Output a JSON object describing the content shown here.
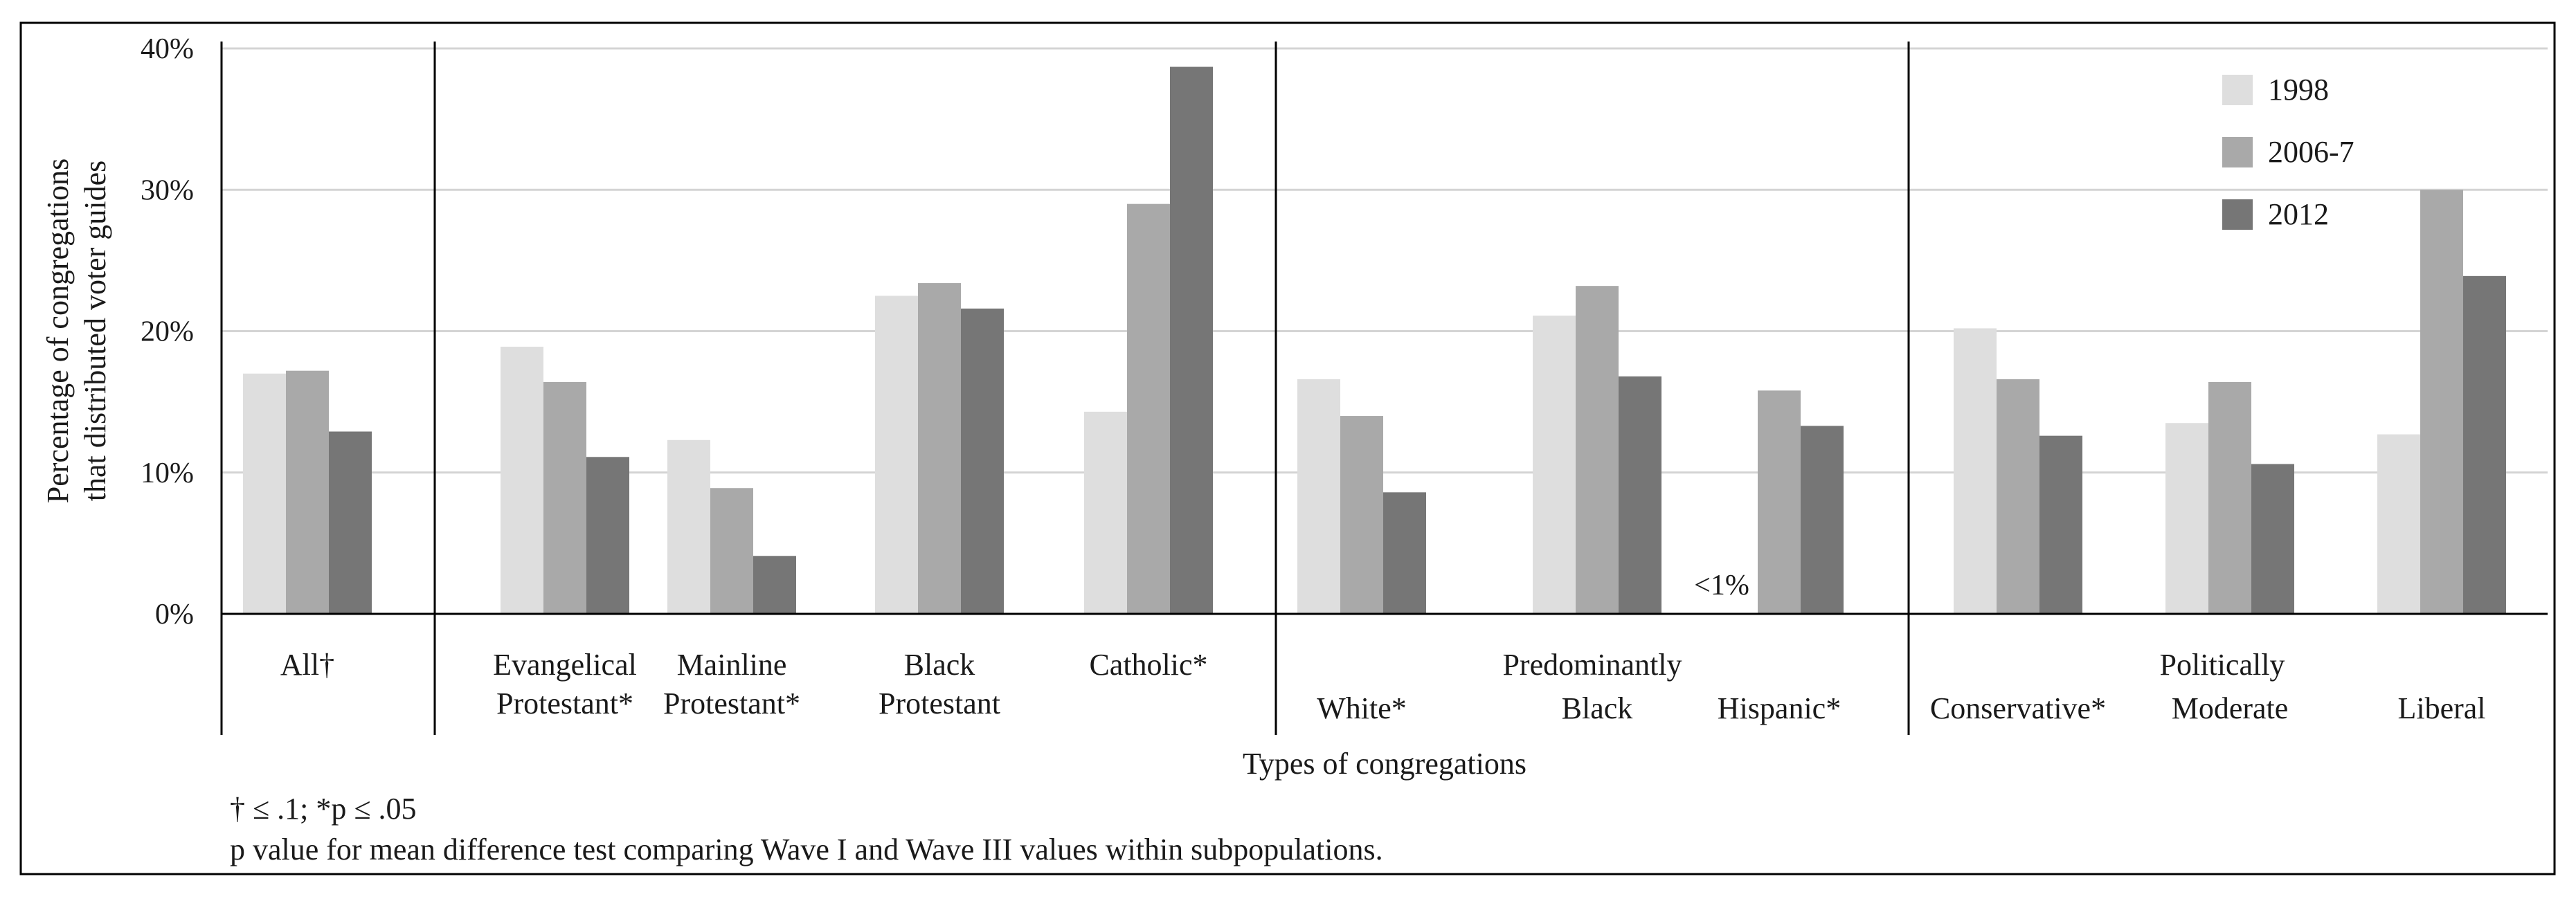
{
  "chart_data": {
    "type": "bar",
    "ylabel_lines": [
      "Percentage of congregations",
      "that distributed voter guides"
    ],
    "xlabel": "Types of congregations",
    "ylim": [
      0,
      40
    ],
    "y_ticks": [
      0,
      10,
      20,
      30,
      40
    ],
    "y_tick_labels": [
      "0%",
      "10%",
      "20%",
      "30%",
      "40%"
    ],
    "gridlines": true,
    "legend_position": "top-right",
    "series": [
      {
        "name": "1998",
        "color": "#dedede"
      },
      {
        "name": "2006-7",
        "color": "#a9a9a9"
      },
      {
        "name": "2012",
        "color": "#767676"
      }
    ],
    "categories": [
      {
        "label_lines": [
          "All†"
        ],
        "label_row": "top",
        "values": [
          17.0,
          17.2,
          12.9
        ]
      },
      {
        "label_lines": [
          "Evangelical",
          "Protestant*"
        ],
        "label_row": "top",
        "values": [
          18.9,
          16.4,
          11.1
        ]
      },
      {
        "label_lines": [
          "Mainline",
          "Protestant*"
        ],
        "label_row": "top",
        "values": [
          12.3,
          8.9,
          4.1
        ]
      },
      {
        "label_lines": [
          "Black",
          "Protestant"
        ],
        "label_row": "top",
        "values": [
          22.5,
          23.4,
          21.6
        ]
      },
      {
        "label_lines": [
          "Catholic*"
        ],
        "label_row": "top",
        "values": [
          14.3,
          29.0,
          38.7
        ]
      },
      {
        "label_lines": [
          "White*"
        ],
        "label_row": "bottom",
        "values": [
          16.6,
          14.0,
          8.6
        ]
      },
      {
        "label_lines": [
          "Black"
        ],
        "label_row": "bottom",
        "values": [
          21.1,
          23.2,
          16.8
        ]
      },
      {
        "label_lines": [
          "Hispanic*"
        ],
        "label_row": "bottom",
        "values": [
          0,
          15.8,
          13.3
        ]
      },
      {
        "label_lines": [
          "Conservative*"
        ],
        "label_row": "bottom",
        "values": [
          20.2,
          16.6,
          12.6
        ]
      },
      {
        "label_lines": [
          "Moderate"
        ],
        "label_row": "bottom",
        "values": [
          13.5,
          16.4,
          10.6
        ]
      },
      {
        "label_lines": [
          "Liberal"
        ],
        "label_row": "bottom",
        "values": [
          12.7,
          30.0,
          23.9
        ]
      }
    ],
    "groups": [
      {
        "label": "",
        "category_indices": [
          0
        ]
      },
      {
        "label": "",
        "category_indices": [
          1,
          2,
          3,
          4
        ]
      },
      {
        "label": "Predominantly",
        "category_indices": [
          5,
          6,
          7
        ]
      },
      {
        "label": "Politically",
        "category_indices": [
          8,
          9,
          10
        ]
      }
    ],
    "annotations": [
      {
        "text": "<1%",
        "category_index": 7,
        "series_index": 0
      }
    ],
    "footnotes": [
      "† ≤ .1; *p ≤ .05",
      "p value for mean difference test comparing Wave I and Wave III values within subpopulations."
    ]
  }
}
